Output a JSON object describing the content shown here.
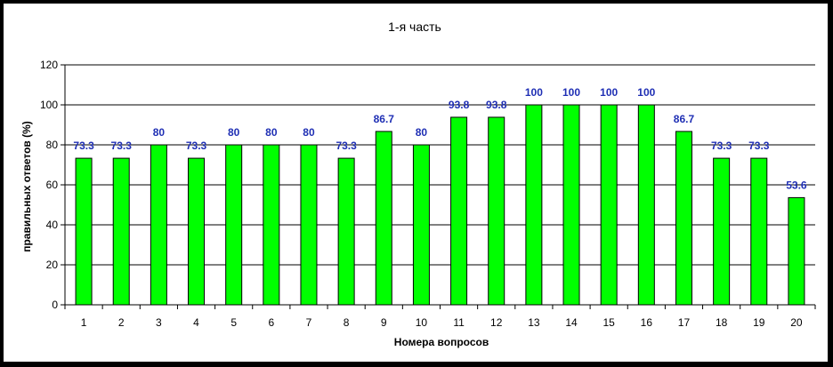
{
  "chart_data": {
    "type": "bar",
    "title": "1-я часть",
    "xlabel": "Номера вопросов",
    "ylabel": "правильных ответов (%)",
    "categories": [
      "1",
      "2",
      "3",
      "4",
      "5",
      "6",
      "7",
      "8",
      "9",
      "10",
      "11",
      "12",
      "13",
      "14",
      "15",
      "16",
      "17",
      "18",
      "19",
      "20"
    ],
    "values": [
      73.3,
      73.3,
      80,
      73.3,
      80,
      80,
      80,
      73.3,
      86.7,
      80,
      93.8,
      93.8,
      100,
      100,
      100,
      100,
      86.7,
      73.3,
      73.3,
      53.6
    ],
    "data_labels": [
      "73.3",
      "73.3",
      "80",
      "73.3",
      "80",
      "80",
      "80",
      "73.3",
      "86.7",
      "80",
      "93.8",
      "93.8",
      "100",
      "100",
      "100",
      "100",
      "86.7",
      "73.3",
      "73.3",
      "53.6"
    ],
    "ylim": [
      0,
      120
    ],
    "yticks": [
      0,
      20,
      40,
      60,
      80,
      100,
      120
    ],
    "grid": true,
    "bar_color": "#00ff00",
    "label_color": "#1f2fb4"
  }
}
